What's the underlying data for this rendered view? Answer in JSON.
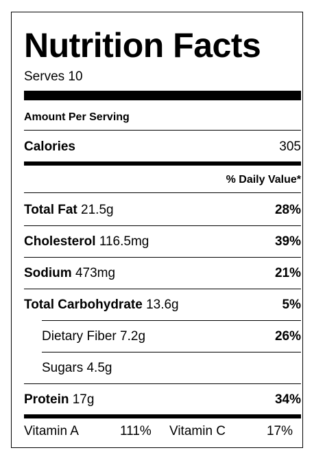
{
  "title": "Nutrition Facts",
  "serves": "Serves 10",
  "amount_per_serving": "Amount Per Serving",
  "calories": {
    "label": "Calories",
    "value": "305"
  },
  "daily_value_header": "% Daily Value*",
  "nutrients": [
    {
      "name": "Total Fat",
      "amount": "21.5g",
      "dv": "28%"
    },
    {
      "name": "Cholesterol",
      "amount": "116.5mg",
      "dv": "39%"
    },
    {
      "name": "Sodium",
      "amount": "473mg",
      "dv": "21%"
    },
    {
      "name": "Total Carbohydrate",
      "amount": "13.6g",
      "dv": "5%"
    },
    {
      "name": "Dietary Fiber",
      "amount": "7.2g",
      "dv": "26%"
    },
    {
      "name": "Sugars",
      "amount": "4.5g",
      "dv": ""
    },
    {
      "name": "Protein",
      "amount": "17g",
      "dv": "34%"
    }
  ],
  "vitamins": [
    {
      "name": "Vitamin A",
      "dv": "111%"
    },
    {
      "name": "Vitamin C",
      "dv": "17%"
    }
  ]
}
